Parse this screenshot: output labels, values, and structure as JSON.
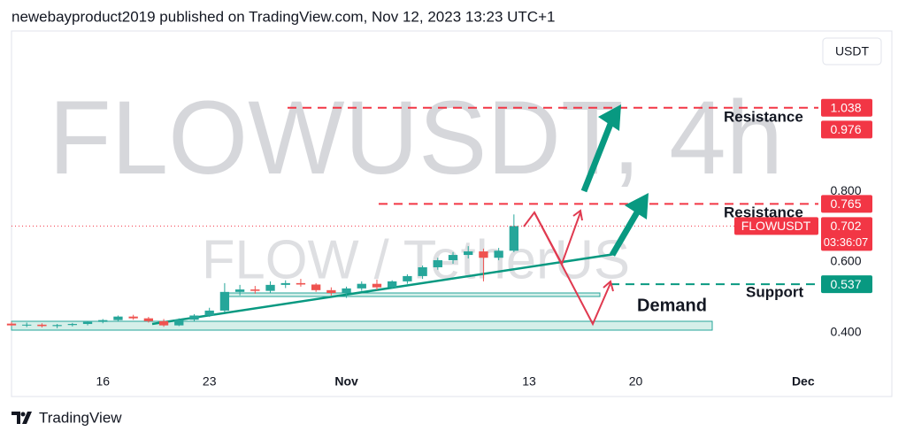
{
  "header": {
    "text": "newebayproduct2019 published on TradingView.com, Nov 12, 2023 13:23 UTC+1"
  },
  "logo": {
    "text": "TradingView"
  },
  "currency_button": "USDT",
  "chart_data": {
    "type": "candlestick",
    "watermark": "FLOWUSDT, 4h",
    "watermark_sub": "FLOW / TetherUS",
    "x": [
      "2023-10-10",
      "2023-10-11",
      "2023-10-12",
      "2023-10-13",
      "2023-10-14",
      "2023-10-15",
      "2023-10-16",
      "2023-10-17",
      "2023-10-18",
      "2023-10-19",
      "2023-10-20",
      "2023-10-21",
      "2023-10-22",
      "2023-10-23",
      "2023-10-24",
      "2023-10-25",
      "2023-10-26",
      "2023-10-27",
      "2023-10-28",
      "2023-10-29",
      "2023-10-30",
      "2023-10-31",
      "2023-11-01",
      "2023-11-02",
      "2023-11-03",
      "2023-11-04",
      "2023-11-05",
      "2023-11-06",
      "2023-11-07",
      "2023-11-08",
      "2023-11-09",
      "2023-11-10",
      "2023-11-11",
      "2023-11-12"
    ],
    "open": [
      0.425,
      0.42,
      0.422,
      0.418,
      0.421,
      0.424,
      0.43,
      0.435,
      0.445,
      0.44,
      0.432,
      0.42,
      0.436,
      0.448,
      0.462,
      0.515,
      0.522,
      0.518,
      0.535,
      0.54,
      0.536,
      0.52,
      0.512,
      0.525,
      0.538,
      0.528,
      0.545,
      0.56,
      0.585,
      0.605,
      0.62,
      0.63,
      0.612,
      0.632
    ],
    "high": [
      0.43,
      0.428,
      0.426,
      0.424,
      0.427,
      0.432,
      0.438,
      0.448,
      0.45,
      0.444,
      0.438,
      0.44,
      0.452,
      0.47,
      0.54,
      0.535,
      0.532,
      0.545,
      0.548,
      0.552,
      0.54,
      0.528,
      0.53,
      0.545,
      0.55,
      0.548,
      0.565,
      0.59,
      0.612,
      0.628,
      0.645,
      0.638,
      0.64,
      0.735
    ],
    "low": [
      0.418,
      0.415,
      0.414,
      0.412,
      0.417,
      0.42,
      0.426,
      0.432,
      0.436,
      0.428,
      0.416,
      0.418,
      0.432,
      0.444,
      0.458,
      0.505,
      0.51,
      0.512,
      0.526,
      0.53,
      0.515,
      0.505,
      0.498,
      0.518,
      0.52,
      0.524,
      0.538,
      0.552,
      0.578,
      0.595,
      0.61,
      0.545,
      0.605,
      0.628
    ],
    "close": [
      0.42,
      0.422,
      0.418,
      0.421,
      0.424,
      0.43,
      0.435,
      0.445,
      0.44,
      0.432,
      0.42,
      0.436,
      0.448,
      0.462,
      0.515,
      0.522,
      0.518,
      0.535,
      0.54,
      0.536,
      0.52,
      0.512,
      0.525,
      0.538,
      0.528,
      0.545,
      0.56,
      0.585,
      0.605,
      0.62,
      0.63,
      0.612,
      0.632,
      0.702
    ],
    "up_color": "#26a69a",
    "down_color": "#ef5350",
    "xlim": [
      "2023-10-10",
      "2023-12-02"
    ],
    "xticks": [
      {
        "value": "2023-10-16",
        "label": "16"
      },
      {
        "value": "2023-10-23",
        "label": "23"
      },
      {
        "value": "2023-11-01",
        "label": "Nov"
      },
      {
        "value": "2023-11-13",
        "label": "13"
      },
      {
        "value": "2023-11-20",
        "label": "20"
      },
      {
        "value": "2023-12-01",
        "label": "Dec"
      }
    ],
    "ylim": [
      0.218,
      1.256
    ],
    "yticks": [
      {
        "value": 0.4,
        "label": "0.400"
      },
      {
        "value": 0.6,
        "label": "0.600"
      },
      {
        "value": 0.8,
        "label": "0.800"
      }
    ],
    "price_labels": [
      {
        "value": 1.038,
        "color": "#f23645"
      },
      {
        "value": 0.976,
        "color": "#f23645"
      },
      {
        "value": 0.765,
        "color": "#f23645"
      },
      {
        "value": 0.537,
        "color": "#089981"
      }
    ],
    "last_price": {
      "symbol": "FLOWUSDT",
      "value": 0.702,
      "countdown": "03:36:07",
      "color": "#f23645"
    },
    "annotations": [
      "Resistance",
      "Resistance",
      "Support",
      "Demand"
    ]
  }
}
